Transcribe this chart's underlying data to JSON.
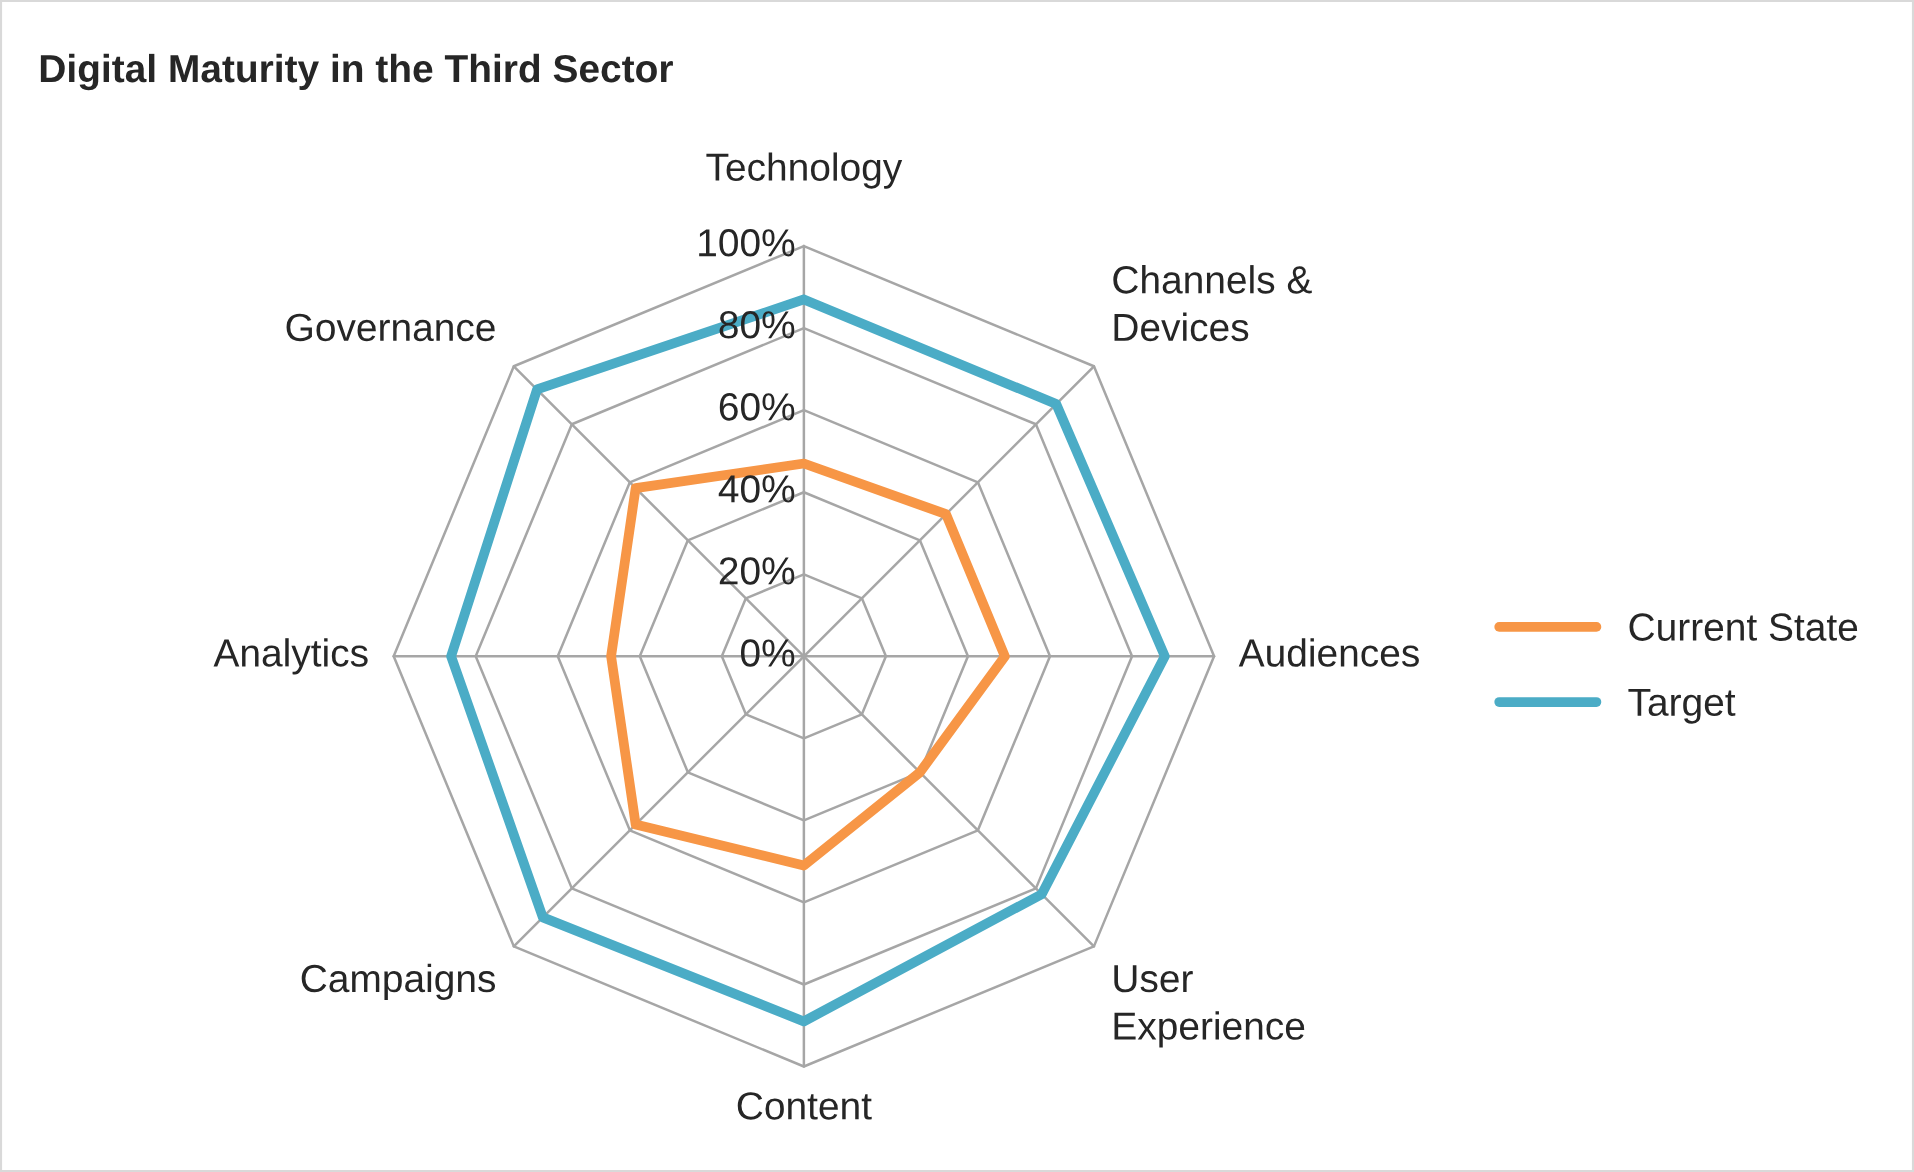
{
  "chart_data": {
    "type": "radar",
    "title": "Digital Maturity in the Third Sector",
    "categories": [
      "Technology",
      "Channels &\nDevices",
      "Audiences",
      "User\nExperience",
      "Content",
      "Campaigns",
      "Analytics",
      "Governance"
    ],
    "series": [
      {
        "name": "Current State",
        "color": "#f79646",
        "values": [
          0.47,
          0.49,
          0.49,
          0.4,
          0.51,
          0.58,
          0.47,
          0.58
        ]
      },
      {
        "name": "Target",
        "color": "#4bacc6",
        "values": [
          0.87,
          0.87,
          0.88,
          0.82,
          0.89,
          0.9,
          0.86,
          0.92
        ]
      }
    ],
    "ylim": [
      0,
      1
    ],
    "yticks": [
      {
        "value": 0,
        "label": "0%"
      },
      {
        "value": 0.2,
        "label": "20%"
      },
      {
        "value": 0.4,
        "label": "40%"
      },
      {
        "value": 0.6,
        "label": "60%"
      },
      {
        "value": 0.8,
        "label": "80%"
      },
      {
        "value": 1,
        "label": "100%"
      }
    ],
    "legend": "right",
    "marker": "none"
  }
}
